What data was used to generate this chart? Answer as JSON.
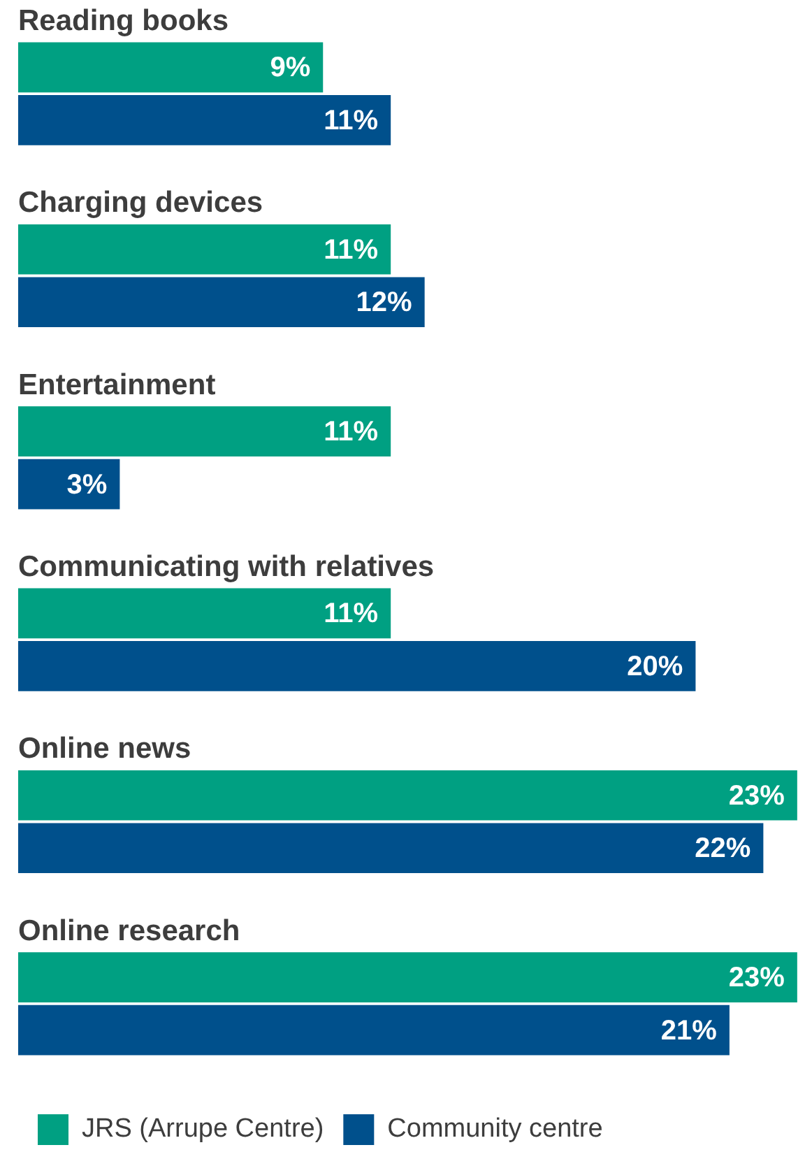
{
  "chart_data": {
    "type": "bar",
    "orientation": "horizontal",
    "categories": [
      "Reading books",
      "Charging devices",
      "Entertainment",
      "Communicating with relatives",
      "Online news",
      "Online research"
    ],
    "series": [
      {
        "name": "JRS (Arrupe Centre)",
        "color": "#00a082",
        "values": [
          9,
          11,
          11,
          11,
          23,
          23
        ],
        "value_labels": [
          "9%",
          "11%",
          "11%",
          "11%",
          "23%",
          "23%"
        ]
      },
      {
        "name": "Community centre",
        "color": "#00508c",
        "values": [
          11,
          12,
          3,
          20,
          22,
          21
        ],
        "value_labels": [
          "11%",
          "12%",
          "3%",
          "20%",
          "22%",
          "21%"
        ]
      }
    ],
    "legend": "bottom left"
  }
}
